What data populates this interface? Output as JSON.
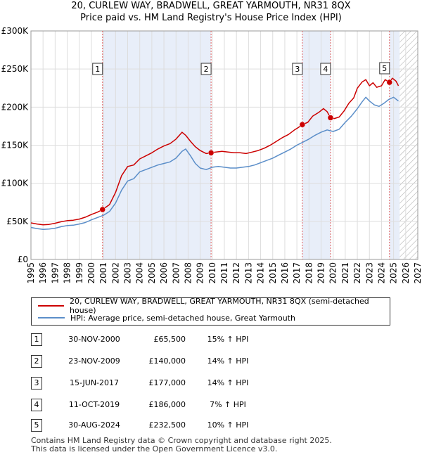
{
  "chart_data": {
    "type": "line",
    "title": "20, CURLEW WAY, BRADWELL, GREAT YARMOUTH, NR31 8QX",
    "subtitle": "Price paid vs. HM Land Registry's House Price Index (HPI)",
    "xlim": [
      1995,
      2027
    ],
    "ylim": [
      0,
      300000
    ],
    "y_ticks": [
      {
        "value": 0,
        "label": "£0"
      },
      {
        "value": 50000,
        "label": "£50K"
      },
      {
        "value": 100000,
        "label": "£100K"
      },
      {
        "value": 150000,
        "label": "£150K"
      },
      {
        "value": 200000,
        "label": "£200K"
      },
      {
        "value": 250000,
        "label": "£250K"
      },
      {
        "value": 300000,
        "label": "£300K"
      }
    ],
    "x_ticks": [
      "1995",
      "1996",
      "1997",
      "1998",
      "1999",
      "2000",
      "2001",
      "2002",
      "2003",
      "2004",
      "2005",
      "2006",
      "2007",
      "2008",
      "2009",
      "2010",
      "2011",
      "2012",
      "2013",
      "2014",
      "2015",
      "2016",
      "2017",
      "2018",
      "2019",
      "2020",
      "2021",
      "2022",
      "2023",
      "2024",
      "2025",
      "2026",
      "2027"
    ],
    "grid": true,
    "shaded_region": [
      2000.92,
      2009.9
    ],
    "shaded_region_2": [
      2017.45,
      2019.78
    ],
    "shaded_region_3": [
      2024.66,
      2025.5
    ],
    "forecast_from": 2025.5,
    "series": [
      {
        "name": "20, CURLEW WAY, BRADWELL, GREAT YARMOUTH, NR31 8QX (semi-detached house)",
        "color": "#cc0000",
        "x": [
          1995.0,
          1995.5,
          1996.0,
          1996.5,
          1997.0,
          1997.5,
          1998.0,
          1998.5,
          1999.0,
          1999.5,
          2000.0,
          2000.5,
          2000.92,
          2001.5,
          2002.0,
          2002.5,
          2003.0,
          2003.5,
          2004.0,
          2004.5,
          2005.0,
          2005.5,
          2006.0,
          2006.5,
          2007.0,
          2007.5,
          2007.8,
          2008.2,
          2008.6,
          2009.0,
          2009.5,
          2009.9,
          2010.3,
          2010.8,
          2011.3,
          2011.8,
          2012.3,
          2012.8,
          2013.3,
          2013.8,
          2014.3,
          2014.8,
          2015.3,
          2015.8,
          2016.3,
          2016.8,
          2017.1,
          2017.45,
          2017.9,
          2018.3,
          2018.8,
          2019.2,
          2019.5,
          2019.78,
          2020.1,
          2020.5,
          2020.9,
          2021.3,
          2021.7,
          2022.0,
          2022.4,
          2022.7,
          2023.0,
          2023.3,
          2023.6,
          2024.0,
          2024.3,
          2024.66,
          2024.9,
          2025.2,
          2025.4
        ],
        "values": [
          48000,
          46500,
          45500,
          46000,
          47500,
          49500,
          51000,
          51500,
          53000,
          55500,
          59000,
          62000,
          65500,
          72000,
          88000,
          110000,
          122000,
          124000,
          132000,
          136000,
          140000,
          145000,
          149000,
          152000,
          158000,
          167000,
          163000,
          155000,
          148000,
          143000,
          139000,
          140000,
          141000,
          142000,
          141000,
          140000,
          140000,
          139000,
          141000,
          143000,
          146000,
          150000,
          155000,
          160000,
          164000,
          170000,
          173000,
          177000,
          180000,
          188000,
          193000,
          198000,
          194000,
          186000,
          185000,
          187000,
          195000,
          205000,
          212000,
          225000,
          233000,
          236000,
          228000,
          232000,
          226000,
          228000,
          236000,
          232500,
          238000,
          234000,
          228000
        ]
      },
      {
        "name": "HPI: Average price, semi-detached house, Great Yarmouth",
        "color": "#5b8ec9",
        "x": [
          1995.0,
          1995.5,
          1996.0,
          1996.5,
          1997.0,
          1997.5,
          1998.0,
          1998.5,
          1999.0,
          1999.5,
          2000.0,
          2000.5,
          2001.0,
          2001.5,
          2002.0,
          2002.5,
          2003.0,
          2003.5,
          2004.0,
          2004.5,
          2005.0,
          2005.5,
          2006.0,
          2006.5,
          2007.0,
          2007.5,
          2007.8,
          2008.2,
          2008.6,
          2009.0,
          2009.5,
          2010.0,
          2010.5,
          2011.0,
          2011.5,
          2012.0,
          2012.5,
          2013.0,
          2013.5,
          2014.0,
          2014.5,
          2015.0,
          2015.5,
          2016.0,
          2016.5,
          2017.0,
          2017.5,
          2018.0,
          2018.5,
          2019.0,
          2019.5,
          2020.0,
          2020.5,
          2021.0,
          2021.5,
          2022.0,
          2022.4,
          2022.7,
          2023.0,
          2023.4,
          2023.8,
          2024.2,
          2024.6,
          2025.0,
          2025.4
        ],
        "values": [
          42000,
          40500,
          39500,
          40000,
          41000,
          43000,
          44500,
          45000,
          46500,
          48500,
          52000,
          55000,
          58000,
          63000,
          74000,
          91000,
          103000,
          106000,
          115000,
          118000,
          121000,
          124000,
          126000,
          128000,
          133000,
          142000,
          145000,
          136000,
          126000,
          120000,
          118000,
          121000,
          122000,
          121000,
          120000,
          120000,
          121000,
          122000,
          124000,
          127000,
          130000,
          133000,
          137000,
          141000,
          145000,
          150000,
          154000,
          158000,
          163000,
          167000,
          170000,
          168000,
          171000,
          180000,
          188000,
          198000,
          207000,
          213000,
          208000,
          203000,
          201000,
          205000,
          210000,
          213000,
          208000
        ]
      }
    ],
    "markers": [
      {
        "id": "1",
        "x": 2000.92,
        "y": 65500
      },
      {
        "id": "2",
        "x": 2009.9,
        "y": 140000
      },
      {
        "id": "3",
        "x": 2017.45,
        "y": 177000
      },
      {
        "id": "4",
        "x": 2019.78,
        "y": 186000
      },
      {
        "id": "5",
        "x": 2024.66,
        "y": 232500
      }
    ]
  },
  "legend": {
    "property": "20, CURLEW WAY, BRADWELL, GREAT YARMOUTH, NR31 8QX (semi-detached house)",
    "hpi": "HPI: Average price, semi-detached house, Great Yarmouth"
  },
  "transactions": [
    {
      "id": "1",
      "date": "30-NOV-2000",
      "price": "£65,500",
      "hpi": "15% ↑ HPI"
    },
    {
      "id": "2",
      "date": "23-NOV-2009",
      "price": "£140,000",
      "hpi": "14% ↑ HPI"
    },
    {
      "id": "3",
      "date": "15-JUN-2017",
      "price": "£177,000",
      "hpi": "14% ↑ HPI"
    },
    {
      "id": "4",
      "date": "11-OCT-2019",
      "price": "£186,000",
      "hpi": "7% ↑ HPI"
    },
    {
      "id": "5",
      "date": "30-AUG-2024",
      "price": "£232,500",
      "hpi": "10% ↑ HPI"
    }
  ],
  "footer": {
    "line1": "Contains HM Land Registry data © Crown copyright and database right 2025.",
    "line2": "This data is licensed under the Open Government Licence v3.0."
  },
  "colors": {
    "property": "#cc0000",
    "hpi": "#5b8ec9",
    "shade": "#e8eef9",
    "vline": "#e06060"
  }
}
